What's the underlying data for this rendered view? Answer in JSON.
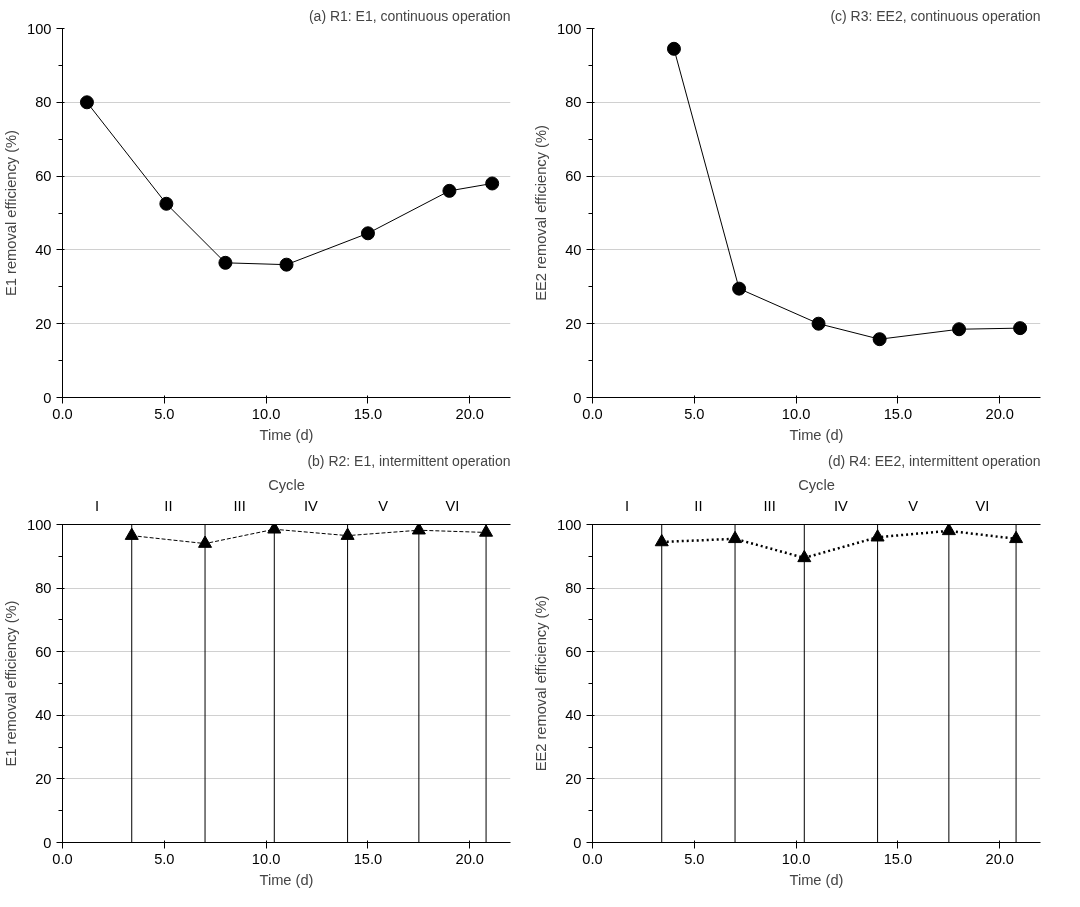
{
  "chart_data": [
    {
      "type": "line",
      "title": "(a) R1: E1, continuous operation",
      "xlabel": "Time (d)",
      "ylabel": "E1 removal efficiency (%)",
      "marker": "circle",
      "line_style": "solid",
      "grid": "y",
      "xlim": [
        0,
        22
      ],
      "xticks": [
        {
          "value": 0,
          "label": "0.0"
        },
        {
          "value": 5,
          "label": "5.0"
        },
        {
          "value": 10,
          "label": "10.0"
        },
        {
          "value": 15,
          "label": "15.0"
        },
        {
          "value": 20,
          "label": "20.0"
        }
      ],
      "ylim": [
        0,
        100
      ],
      "yticks": [
        0,
        20,
        40,
        60,
        80,
        100
      ],
      "series": [
        {
          "color": "#000000",
          "x": [
            1.2,
            5.1,
            8.0,
            11.0,
            15.0,
            19.0,
            21.1
          ],
          "values": [
            80,
            52.5,
            36.5,
            36,
            44.5,
            56,
            58
          ]
        }
      ]
    },
    {
      "type": "line",
      "title": "(c) R3: EE2, continuous operation",
      "xlabel": "Time (d)",
      "ylabel": "EE2 removal efficiency (%)",
      "marker": "circle",
      "line_style": "solid",
      "grid": "y",
      "xlim": [
        0,
        22
      ],
      "xticks": [
        {
          "value": 0,
          "label": "0.0"
        },
        {
          "value": 5,
          "label": "5.0"
        },
        {
          "value": 10,
          "label": "10.0"
        },
        {
          "value": 15,
          "label": "15.0"
        },
        {
          "value": 20,
          "label": "20.0"
        }
      ],
      "ylim": [
        0,
        100
      ],
      "yticks": [
        0,
        20,
        40,
        60,
        80,
        100
      ],
      "series": [
        {
          "color": "#000000",
          "x": [
            4.0,
            7.2,
            11.1,
            14.1,
            18.0,
            21.0
          ],
          "values": [
            94.5,
            29.5,
            20,
            15.8,
            18.5,
            18.8
          ]
        }
      ]
    },
    {
      "type": "line",
      "title": "(b) R2: E1, intermittent operation",
      "xlabel": "Time (d)",
      "ylabel": "E1 removal efficiency (%)",
      "marker": "triangle",
      "line_style": "dashed",
      "grid": "y",
      "xlim": [
        0,
        22
      ],
      "xticks": [
        {
          "value": 0,
          "label": "0.0"
        },
        {
          "value": 5,
          "label": "5.0"
        },
        {
          "value": 10,
          "label": "10.0"
        },
        {
          "value": 15,
          "label": "15.0"
        },
        {
          "value": 20,
          "label": "20.0"
        }
      ],
      "ylim": [
        0,
        100
      ],
      "yticks": [
        0,
        20,
        40,
        60,
        80,
        100
      ],
      "annotations": [
        "Cycle",
        "I",
        "II",
        "III",
        "IV",
        "V",
        "VI"
      ],
      "series": [
        {
          "color": "#000000",
          "x": [
            3.4,
            7.0,
            10.4,
            14.0,
            17.5,
            20.8
          ],
          "values": [
            96.5,
            94,
            98.5,
            96.5,
            98.2,
            97.5
          ]
        }
      ],
      "ref_lines": [
        {
          "axis": "x",
          "value": 3.4,
          "color": "#000000"
        },
        {
          "axis": "x",
          "value": 7.0,
          "color": "#000000"
        },
        {
          "axis": "x",
          "value": 10.4,
          "color": "#000000"
        },
        {
          "axis": "x",
          "value": 14.0,
          "color": "#000000"
        },
        {
          "axis": "x",
          "value": 17.5,
          "color": "#000000"
        },
        {
          "axis": "x",
          "value": 20.8,
          "color": "#000000"
        }
      ]
    },
    {
      "type": "line",
      "title": "(d) R4: EE2, intermittent operation",
      "xlabel": "Time (d)",
      "ylabel": "EE2 removal efficiency (%)",
      "marker": "triangle",
      "line_style": "dotted",
      "grid": "y",
      "xlim": [
        0,
        22
      ],
      "xticks": [
        {
          "value": 0,
          "label": "0.0"
        },
        {
          "value": 5,
          "label": "5.0"
        },
        {
          "value": 10,
          "label": "10.0"
        },
        {
          "value": 15,
          "label": "15.0"
        },
        {
          "value": 20,
          "label": "20.0"
        }
      ],
      "ylim": [
        0,
        100
      ],
      "yticks": [
        0,
        20,
        40,
        60,
        80,
        100
      ],
      "annotations": [
        "Cycle",
        "I",
        "II",
        "III",
        "IV",
        "V",
        "VI"
      ],
      "series": [
        {
          "color": "#000000",
          "x": [
            3.4,
            7.0,
            10.4,
            14.0,
            17.5,
            20.8
          ],
          "values": [
            94.5,
            95.5,
            89.5,
            96,
            98,
            95.5
          ]
        }
      ],
      "ref_lines": [
        {
          "axis": "x",
          "value": 3.4,
          "color": "#000000"
        },
        {
          "axis": "x",
          "value": 7.0,
          "color": "#000000"
        },
        {
          "axis": "x",
          "value": 10.4,
          "color": "#000000"
        },
        {
          "axis": "x",
          "value": 14.0,
          "color": "#000000"
        },
        {
          "axis": "x",
          "value": 17.5,
          "color": "#000000"
        },
        {
          "axis": "x",
          "value": 20.8,
          "color": "#000000"
        }
      ]
    }
  ]
}
